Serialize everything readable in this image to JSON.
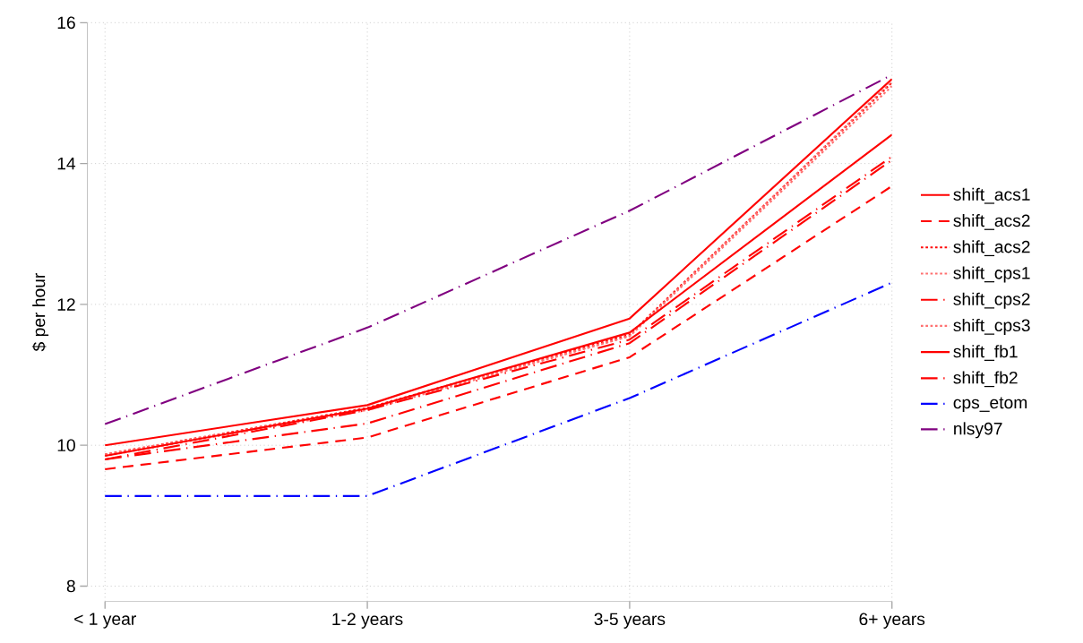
{
  "chart_data": {
    "type": "line",
    "ylabel": "$ per hour",
    "categories": [
      "< 1 year",
      "1-2 years",
      "3-5 years",
      "6+ years"
    ],
    "series": [
      {
        "name": "shift_acs1",
        "color": "#ff0000",
        "line_style": "solid",
        "values": [
          10.0,
          10.57,
          11.8,
          15.2
        ]
      },
      {
        "name": "shift_acs2",
        "color": "#ff0000",
        "line_style": "dashed",
        "values": [
          9.66,
          10.11,
          11.25,
          13.68
        ]
      },
      {
        "name": "shift_acs2",
        "color": "#ff0000",
        "line_style": "dotted",
        "values": [
          9.87,
          10.53,
          11.57,
          15.15
        ]
      },
      {
        "name": "shift_cps1",
        "color": "#ff7070",
        "line_style": "dotted",
        "values": [
          9.87,
          10.52,
          11.55,
          15.17
        ]
      },
      {
        "name": "shift_cps2",
        "color": "#ff0000",
        "line_style": "dashdot",
        "values": [
          9.8,
          10.31,
          11.45,
          14.05
        ]
      },
      {
        "name": "shift_cps3",
        "color": "#ff7070",
        "line_style": "dotted",
        "values": [
          9.85,
          10.5,
          11.55,
          15.1
        ]
      },
      {
        "name": "shift_fb1",
        "color": "#ff0000",
        "line_style": "solid",
        "values": [
          9.85,
          10.52,
          11.6,
          14.41
        ]
      },
      {
        "name": "shift_fb2",
        "color": "#ff0000",
        "line_style": "dashdot",
        "values": [
          9.8,
          10.5,
          11.5,
          14.1
        ]
      },
      {
        "name": "cps_etom",
        "color": "#0000ff",
        "line_style": "dashdot",
        "values": [
          9.28,
          9.28,
          10.67,
          12.31
        ]
      },
      {
        "name": "nlsy97",
        "color": "#800080",
        "line_style": "dashdot",
        "values": [
          10.3,
          11.67,
          13.33,
          15.26
        ]
      }
    ],
    "ylim": [
      8,
      16
    ],
    "yticks": [
      8,
      10,
      12,
      14,
      16
    ],
    "grid": true,
    "legend": "right",
    "marker": "none"
  }
}
